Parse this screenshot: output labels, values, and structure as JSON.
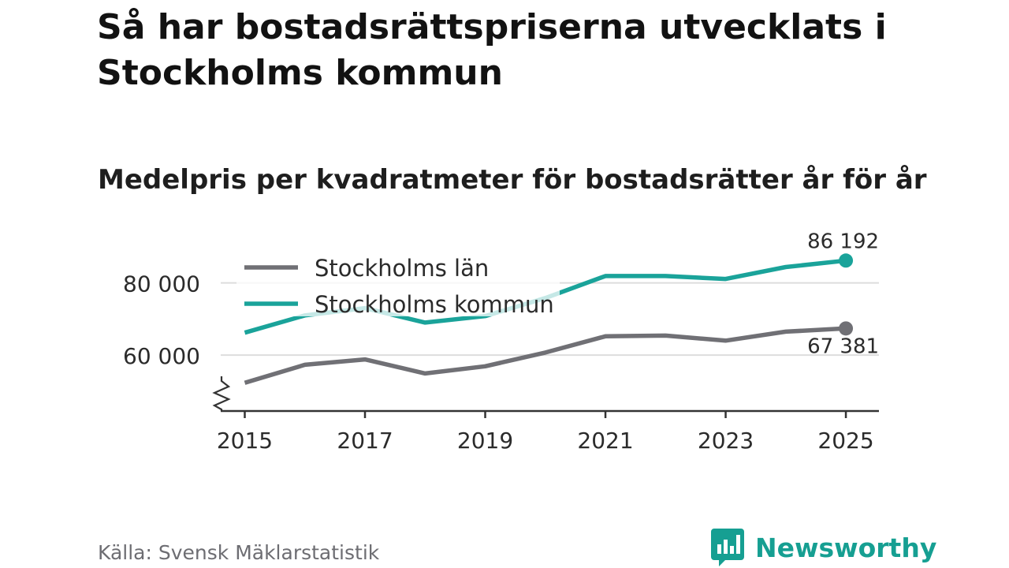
{
  "title": "Så har bostadsrättspriserna utvecklats i Stockholms kommun",
  "subtitle": "Medelpris per kvadratmeter för bostadsrätter år för år",
  "source": "Källa: Svensk Mäklarstatistik",
  "brand": {
    "name": "Newsworthy",
    "logo_icon": "bar-chart-speech-bubble-icon"
  },
  "colors": {
    "kommun": "#1aa39a",
    "lan": "#707075",
    "kommun_faded": "#c8ebe6",
    "grid": "#dddddd",
    "axis": "#333333",
    "text": "#2b2b2b"
  },
  "chart_data": {
    "type": "line",
    "x": [
      2015,
      2016,
      2017,
      2018,
      2019,
      2020,
      2021,
      2022,
      2023,
      2024,
      2025
    ],
    "series": [
      {
        "name": "Stockholms län",
        "key": "lan",
        "values": [
          52300,
          57300,
          58800,
          54900,
          56900,
          60700,
          65200,
          65400,
          64000,
          66500,
          67381
        ],
        "end_label": "67 381"
      },
      {
        "name": "Stockholms kommun",
        "key": "kommun",
        "values": [
          66200,
          71000,
          73000,
          69000,
          70800,
          75800,
          81900,
          81900,
          81100,
          84400,
          86192
        ],
        "end_label": "86 192"
      }
    ],
    "yticks": [
      {
        "value": 60000,
        "label": "60 000"
      },
      {
        "value": 80000,
        "label": "80 000"
      }
    ],
    "xticks": [
      {
        "value": 2015,
        "label": "2015"
      },
      {
        "value": 2017,
        "label": "2017"
      },
      {
        "value": 2019,
        "label": "2019"
      },
      {
        "value": 2021,
        "label": "2021"
      },
      {
        "value": 2023,
        "label": "2023"
      },
      {
        "value": 2025,
        "label": "2025"
      }
    ],
    "ylim": [
      44500,
      95000
    ],
    "xlim": [
      2014.6,
      2025.55
    ],
    "y_axis_break": true,
    "grid": true,
    "legend_position": "top-left"
  }
}
